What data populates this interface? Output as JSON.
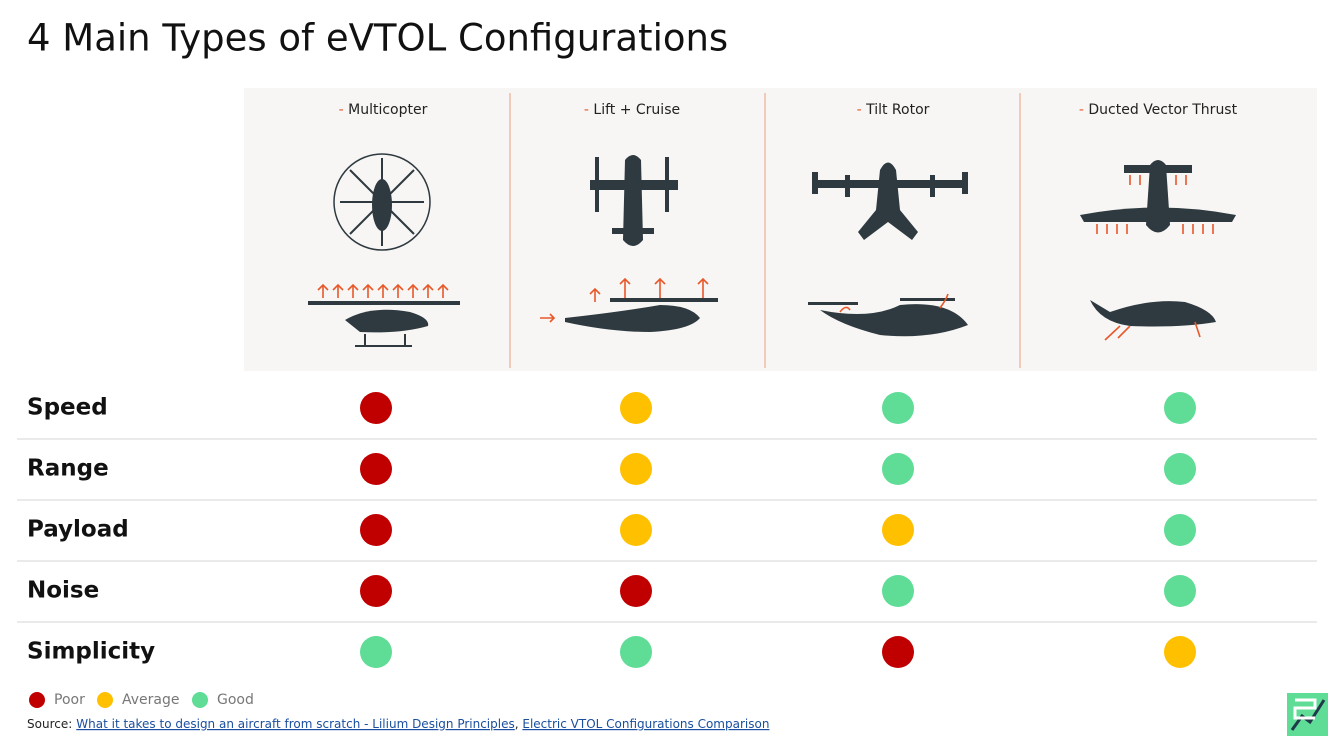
{
  "title": "4 Main Types of eVTOL Configurations",
  "columns": [
    "Multicopter",
    "Lift + Cruise",
    "Tilt Rotor",
    "Ducted Vector Thrust"
  ],
  "legend": [
    {
      "label": "Poor",
      "color": "#c00000"
    },
    {
      "label": "Average",
      "color": "#ffc000"
    },
    {
      "label": "Good",
      "color": "#5fdc96"
    }
  ],
  "rows": [
    {
      "label": "Speed",
      "ratings": [
        "Poor",
        "Average",
        "Good",
        "Good"
      ]
    },
    {
      "label": "Range",
      "ratings": [
        "Poor",
        "Average",
        "Good",
        "Good"
      ]
    },
    {
      "label": "Payload",
      "ratings": [
        "Poor",
        "Average",
        "Average",
        "Good"
      ]
    },
    {
      "label": "Noise",
      "ratings": [
        "Poor",
        "Poor",
        "Good",
        "Good"
      ]
    },
    {
      "label": "Simplicity",
      "ratings": [
        "Good",
        "Good",
        "Poor",
        "Average"
      ]
    }
  ],
  "source": {
    "prefix": "Source:",
    "links": [
      "What it takes to design an aircraft from scratch - Lilium Design Principles",
      "Electric VTOL Configurations Comparison"
    ]
  }
}
